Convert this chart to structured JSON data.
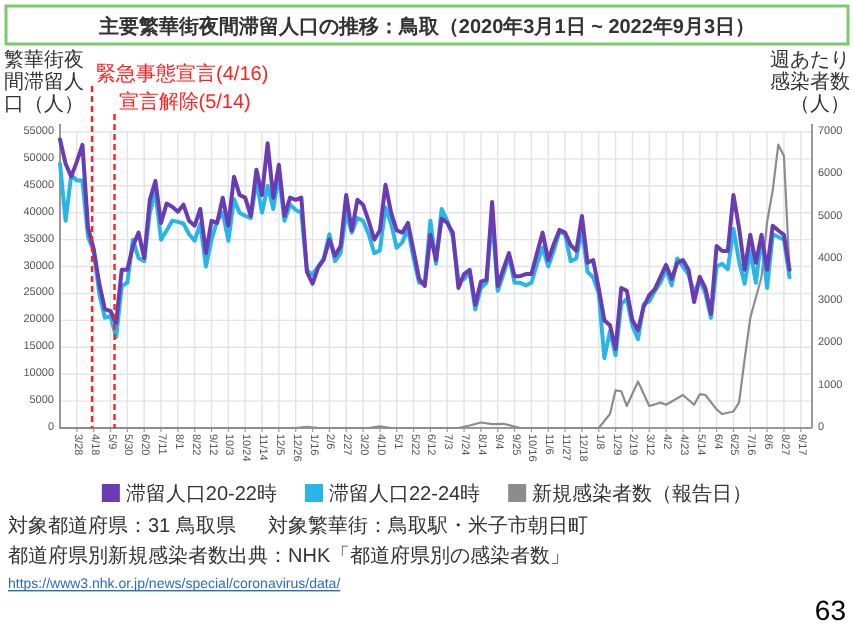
{
  "chart_data": {
    "type": "line",
    "title": "主要繁華街夜間滞留人口の推移：鳥取（2020年3月1日 ~ 2022年9月3日）",
    "ylabel": "繁華街夜間滞留人口（人）",
    "y2label": "週あたり感染者数（人）",
    "x": [
      "2020-03-07",
      "2020-03-14",
      "2020-03-21",
      "2020-03-28",
      "2020-04-04",
      "2020-04-11",
      "2020-04-18",
      "2020-04-25",
      "2020-05-02",
      "2020-05-09",
      "2020-05-16",
      "2020-05-23",
      "2020-05-30",
      "2020-06-06",
      "2020-06-13",
      "2020-06-20",
      "2020-06-27",
      "2020-07-04",
      "2020-07-11",
      "2020-07-18",
      "2020-07-25",
      "2020-08-01",
      "2020-08-08",
      "2020-08-15",
      "2020-08-22",
      "2020-08-29",
      "2020-09-05",
      "2020-09-12",
      "2020-09-19",
      "2020-09-26",
      "2020-10-03",
      "2020-10-10",
      "2020-10-17",
      "2020-10-24",
      "2020-10-31",
      "2020-11-07",
      "2020-11-14",
      "2020-11-21",
      "2020-11-28",
      "2020-12-05",
      "2020-12-12",
      "2020-12-19",
      "2020-12-26",
      "2021-01-02",
      "2021-01-09",
      "2021-01-16",
      "2021-01-23",
      "2021-01-30",
      "2021-02-06",
      "2021-02-13",
      "2021-02-20",
      "2021-02-27",
      "2021-03-06",
      "2021-03-13",
      "2021-03-20",
      "2021-03-27",
      "2021-04-03",
      "2021-04-10",
      "2021-04-17",
      "2021-04-24",
      "2021-05-01",
      "2021-05-08",
      "2021-05-15",
      "2021-05-22",
      "2021-05-29",
      "2021-06-05",
      "2021-06-12",
      "2021-06-19",
      "2021-06-26",
      "2021-07-03",
      "2021-07-10",
      "2021-07-17",
      "2021-07-24",
      "2021-07-31",
      "2021-08-07",
      "2021-08-14",
      "2021-08-21",
      "2021-08-28",
      "2021-09-04",
      "2021-09-11",
      "2021-09-18",
      "2021-09-25",
      "2021-10-02",
      "2021-10-09",
      "2021-10-16",
      "2021-10-23",
      "2021-10-30",
      "2021-11-06",
      "2021-11-13",
      "2021-11-20",
      "2021-11-27",
      "2021-12-04",
      "2021-12-11",
      "2021-12-18",
      "2021-12-25",
      "2022-01-01",
      "2022-01-08",
      "2022-01-15",
      "2022-01-22",
      "2022-01-29",
      "2022-02-05",
      "2022-02-12",
      "2022-02-19",
      "2022-02-26",
      "2022-03-05",
      "2022-03-12",
      "2022-03-19",
      "2022-03-26",
      "2022-04-02",
      "2022-04-09",
      "2022-04-16",
      "2022-04-23",
      "2022-04-30",
      "2022-05-07",
      "2022-05-14",
      "2022-05-21",
      "2022-05-28",
      "2022-06-04",
      "2022-06-11",
      "2022-06-18",
      "2022-06-25",
      "2022-07-02",
      "2022-07-09",
      "2022-07-16",
      "2022-07-23",
      "2022-07-30",
      "2022-08-06",
      "2022-08-13",
      "2022-08-20",
      "2022-08-27",
      "2022-09-03"
    ],
    "series": [
      {
        "name": "滞留人口20-22時",
        "color": "#6a3cb4",
        "values": [
          53600,
          49100,
          46700,
          49500,
          52600,
          37200,
          33300,
          26800,
          22100,
          21700,
          19500,
          29400,
          29400,
          33800,
          36300,
          31600,
          42400,
          45900,
          38100,
          41700,
          41100,
          40200,
          41500,
          38500,
          37600,
          40700,
          32500,
          38500,
          38100,
          42800,
          37600,
          46700,
          43300,
          42800,
          39400,
          48000,
          43300,
          52900,
          42800,
          48900,
          39400,
          42800,
          42400,
          42800,
          29000,
          26800,
          29800,
          31300,
          35000,
          32000,
          33800,
          43300,
          36700,
          42400,
          41500,
          38500,
          35000,
          36700,
          45200,
          40000,
          36700,
          36300,
          38100,
          33000,
          27700,
          26400,
          35900,
          31200,
          38900,
          38100,
          36300,
          26000,
          28600,
          29400,
          22900,
          27200,
          27500,
          42000,
          26400,
          29500,
          32500,
          28200,
          28200,
          28600,
          28600,
          32500,
          36300,
          31200,
          34200,
          36800,
          36300,
          34000,
          32900,
          39400,
          30700,
          31200,
          26000,
          20000,
          19100,
          14700,
          26000,
          25500,
          20000,
          18200,
          22500,
          24700,
          25800,
          28100,
          30300,
          27700,
          30700,
          31200,
          29400,
          23400,
          28100,
          26000,
          21200,
          33800,
          32900,
          32900,
          43300,
          37200,
          29400,
          35900,
          30700,
          35900,
          29400,
          37600,
          36700,
          35900,
          29400
        ]
      },
      {
        "name": "滞留人口22-24時",
        "color": "#29b5e8",
        "values": [
          49100,
          38500,
          47000,
          46000,
          46000,
          35500,
          32900,
          25000,
          20500,
          20800,
          16900,
          26400,
          27000,
          35000,
          31600,
          31000,
          40000,
          44000,
          35000,
          36700,
          38500,
          38300,
          38000,
          36000,
          34800,
          38000,
          30000,
          35000,
          38500,
          40000,
          34800,
          42500,
          40000,
          39400,
          39000,
          46000,
          40000,
          45000,
          40700,
          47000,
          38500,
          41500,
          40500,
          40000,
          29300,
          28500,
          30000,
          31500,
          36000,
          31000,
          32500,
          40000,
          36300,
          39000,
          38500,
          36000,
          32500,
          33000,
          41000,
          38000,
          33500,
          34500,
          37000,
          31500,
          27000,
          27000,
          38500,
          30500,
          40700,
          38500,
          35500,
          27500,
          27700,
          29000,
          22000,
          26000,
          27000,
          39400,
          25500,
          28500,
          32000,
          27000,
          27000,
          26500,
          27000,
          30500,
          33500,
          30000,
          33000,
          36500,
          36000,
          31000,
          31500,
          37000,
          29000,
          28000,
          25000,
          13000,
          18000,
          13500,
          23000,
          24000,
          19000,
          16500,
          23000,
          23500,
          25500,
          27000,
          29500,
          26500,
          31500,
          30000,
          28500,
          25000,
          27500,
          25000,
          20500,
          30000,
          30500,
          29500,
          37000,
          31000,
          26800,
          33000,
          27000,
          35500,
          26000,
          36000,
          35500,
          35000,
          28000
        ]
      },
      {
        "name": "新規感染者数（報告日）",
        "color": "#8c8c8c",
        "axis": "y2",
        "x": [
          "2020-03-07",
          "2020-12-26",
          "2021-01-09",
          "2021-01-23",
          "2021-03-27",
          "2021-04-10",
          "2021-04-24",
          "2021-07-17",
          "2021-07-31",
          "2021-08-14",
          "2021-08-28",
          "2021-09-11",
          "2021-10-02",
          "2022-01-08",
          "2022-01-22",
          "2022-01-29",
          "2022-02-05",
          "2022-02-12",
          "2022-02-26",
          "2022-03-12",
          "2022-03-26",
          "2022-04-02",
          "2022-04-23",
          "2022-05-07",
          "2022-05-14",
          "2022-05-21",
          "2022-06-04",
          "2022-06-11",
          "2022-06-25",
          "2022-07-02",
          "2022-07-09",
          "2022-07-16",
          "2022-07-30",
          "2022-08-06",
          "2022-08-13",
          "2022-08-20",
          "2022-08-27",
          "2022-09-03"
        ],
        "values": [
          0,
          0,
          30,
          0,
          0,
          40,
          0,
          0,
          60,
          130,
          90,
          100,
          0,
          0,
          330,
          890,
          870,
          520,
          1100,
          520,
          600,
          550,
          780,
          550,
          800,
          780,
          440,
          330,
          390,
          600,
          1630,
          2600,
          3570,
          4870,
          5620,
          6700,
          6430,
          3680
        ]
      }
    ],
    "xlim": [
      "2020-03-07",
      "2022-10-01"
    ],
    "xticks": [
      {
        "value": "2020-03-28",
        "label": "3/28"
      },
      {
        "value": "2020-04-18",
        "label": "4/18"
      },
      {
        "value": "2020-05-09",
        "label": "5/9"
      },
      {
        "value": "2020-05-30",
        "label": "5/30"
      },
      {
        "value": "2020-06-20",
        "label": "6/20"
      },
      {
        "value": "2020-07-11",
        "label": "7/11"
      },
      {
        "value": "2020-08-01",
        "label": "8/1"
      },
      {
        "value": "2020-08-22",
        "label": "8/22"
      },
      {
        "value": "2020-09-12",
        "label": "9/12"
      },
      {
        "value": "2020-10-03",
        "label": "10/3"
      },
      {
        "value": "2020-10-24",
        "label": "10/24"
      },
      {
        "value": "2020-11-14",
        "label": "11/14"
      },
      {
        "value": "2020-12-05",
        "label": "12/5"
      },
      {
        "value": "2020-12-26",
        "label": "12/26"
      },
      {
        "value": "2021-01-16",
        "label": "1/16"
      },
      {
        "value": "2021-02-06",
        "label": "2/6"
      },
      {
        "value": "2021-02-27",
        "label": "2/27"
      },
      {
        "value": "2021-03-20",
        "label": "3/20"
      },
      {
        "value": "2021-04-10",
        "label": "4/10"
      },
      {
        "value": "2021-05-01",
        "label": "5/1"
      },
      {
        "value": "2021-05-22",
        "label": "5/22"
      },
      {
        "value": "2021-06-12",
        "label": "6/12"
      },
      {
        "value": "2021-07-03",
        "label": "7/3"
      },
      {
        "value": "2021-07-24",
        "label": "7/24"
      },
      {
        "value": "2021-08-14",
        "label": "8/14"
      },
      {
        "value": "2021-09-04",
        "label": "9/4"
      },
      {
        "value": "2021-09-25",
        "label": "9/25"
      },
      {
        "value": "2021-10-16",
        "label": "10/16"
      },
      {
        "value": "2021-11-06",
        "label": "11/6"
      },
      {
        "value": "2021-11-27",
        "label": "11/27"
      },
      {
        "value": "2021-12-18",
        "label": "12/18"
      },
      {
        "value": "2022-01-08",
        "label": "1/8"
      },
      {
        "value": "2022-01-29",
        "label": "1/29"
      },
      {
        "value": "2022-02-19",
        "label": "2/19"
      },
      {
        "value": "2022-03-12",
        "label": "3/12"
      },
      {
        "value": "2022-04-02",
        "label": "4/2"
      },
      {
        "value": "2022-04-23",
        "label": "4/23"
      },
      {
        "value": "2022-05-14",
        "label": "5/14"
      },
      {
        "value": "2022-06-04",
        "label": "6/4"
      },
      {
        "value": "2022-06-25",
        "label": "6/25"
      },
      {
        "value": "2022-07-16",
        "label": "7/16"
      },
      {
        "value": "2022-08-06",
        "label": "8/6"
      },
      {
        "value": "2022-08-27",
        "label": "8/27"
      },
      {
        "value": "2022-09-17",
        "label": "9/17"
      }
    ],
    "ylim": [
      0,
      55000
    ],
    "yticks": [
      0,
      5000,
      10000,
      15000,
      20000,
      25000,
      30000,
      35000,
      40000,
      45000,
      50000,
      55000
    ],
    "y2lim": [
      0,
      7000
    ],
    "y2ticks": [
      0,
      1000,
      2000,
      3000,
      4000,
      5000,
      6000,
      7000
    ],
    "ref_lines": [
      {
        "axis": "x",
        "value": "2020-04-16",
        "label": "緊急事態宣言(4/16)",
        "color": "#ff2020",
        "line_style": "dashed"
      },
      {
        "axis": "x",
        "value": "2020-05-14",
        "label": "宣言解除(5/14)",
        "color": "#ff2020",
        "line_style": "dashed"
      }
    ],
    "grid": true,
    "legend": "bottom",
    "annotations": [
      "対象都道府県：31 鳥取県",
      "対象繁華街：鳥取駅・米子市朝日町",
      "都道府県別新規感染者数出典：NHK「都道府県別の感染者数」",
      "https://www3.nhk.or.jp/news/special/coronavirus/data/",
      "63"
    ]
  }
}
